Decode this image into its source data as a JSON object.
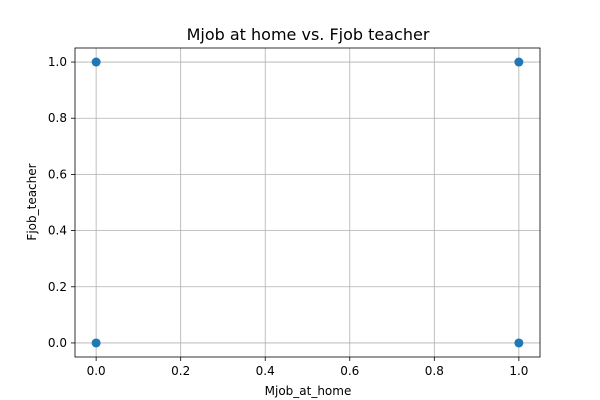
{
  "chart_data": {
    "type": "scatter",
    "title": "Mjob at home vs. Fjob teacher",
    "xlabel": "Mjob_at_home",
    "ylabel": "Fjob_teacher",
    "xlim": [
      -0.05,
      1.05
    ],
    "ylim": [
      -0.05,
      1.05
    ],
    "x_ticks": [
      "0.0",
      "0.2",
      "0.4",
      "0.6",
      "0.8",
      "1.0"
    ],
    "y_ticks": [
      "0.0",
      "0.2",
      "0.4",
      "0.6",
      "0.8",
      "1.0"
    ],
    "grid": true,
    "points": [
      {
        "x": 0,
        "y": 1
      },
      {
        "x": 1,
        "y": 1
      },
      {
        "x": 0,
        "y": 0
      },
      {
        "x": 1,
        "y": 0
      }
    ],
    "marker_color": "#1f77b4"
  }
}
